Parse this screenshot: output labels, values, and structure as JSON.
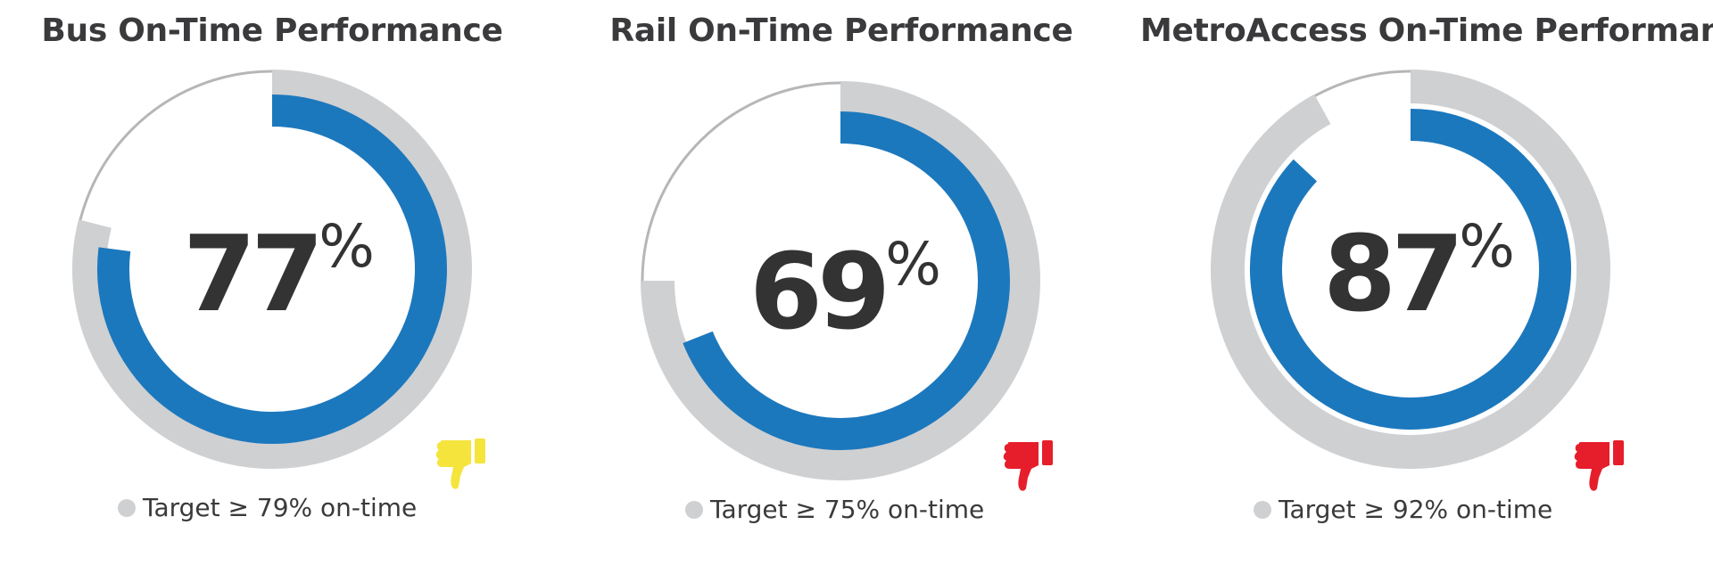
{
  "colors": {
    "achieved": "#1c78bd",
    "target": "#cfd0d2",
    "outline": "#b5b6b8",
    "value_text": "#333333",
    "thumb_near": "#f5e43c",
    "thumb_miss": "#e61e2b"
  },
  "chart_data": [
    {
      "type": "gauge",
      "title": "Bus On-Time Performance",
      "value": 77,
      "value_label": "77",
      "unit": "%",
      "target": 79,
      "legend": "Target ≥ 79% on-time",
      "status_icon": "thumbs-down-icon",
      "status_color": "#f5e43c"
    },
    {
      "type": "gauge",
      "title": "Rail On-Time Performance",
      "value": 69,
      "value_label": "69",
      "unit": "%",
      "target": 75,
      "legend": "Target ≥ 75% on-time",
      "status_icon": "thumbs-down-icon",
      "status_color": "#e61e2b"
    },
    {
      "type": "gauge",
      "title": "MetroAccess On-Time Performance",
      "value": 87,
      "value_label": "87",
      "unit": "%",
      "target": 92,
      "legend": "Target ≥ 92% on-time",
      "status_icon": "thumbs-down-icon",
      "status_color": "#e61e2b"
    }
  ]
}
